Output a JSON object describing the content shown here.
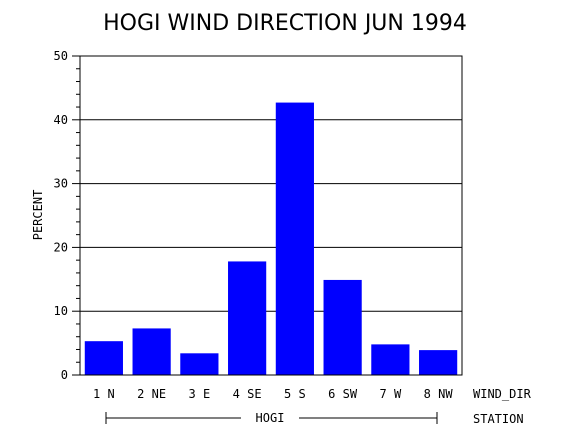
{
  "chart_data": {
    "type": "bar",
    "title": "HOGI WIND DIRECTION JUN 1994",
    "ylabel": "PERCENT",
    "xlabel": "WIND_DIR",
    "group_axis_label": "STATION",
    "group_label": "HOGI",
    "categories": [
      "1 N",
      "2 NE",
      "3 E",
      "4 SE",
      "5 S",
      "6 SW",
      "7 W",
      "8 NW"
    ],
    "values": [
      5.3,
      7.3,
      3.4,
      17.8,
      42.7,
      14.9,
      4.8,
      3.9
    ],
    "ylim": [
      0,
      50
    ],
    "yticks": [
      0,
      10,
      20,
      30,
      40,
      50
    ],
    "grid": true,
    "bar_color": "#0000ff"
  }
}
